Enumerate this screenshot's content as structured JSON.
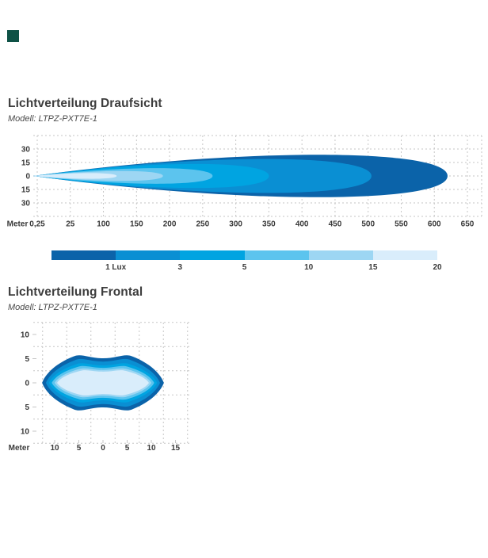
{
  "page": {
    "background": "#ffffff",
    "favicon_color": "#0e5246"
  },
  "sections": {
    "top_view": {
      "title": "Lichtverteilung Draufsicht",
      "model": "Modell: LTPZ-PXT7E-1"
    },
    "front_view": {
      "title": "Lichtverteilung Frontal",
      "model": "Modell: LTPZ-PXT7E-1"
    }
  },
  "legend": {
    "labels": [
      "1 Lux",
      "3",
      "5",
      "10",
      "15",
      "20"
    ],
    "colors": [
      "#0b63a9",
      "#0a8fd3",
      "#00a4e1",
      "#5cc4ee",
      "#9dd6f3",
      "#d9edfb"
    ]
  },
  "chart_data": [
    {
      "type": "area",
      "id": "draufsicht",
      "title": "Lichtverteilung Draufsicht",
      "subtitle": "Modell: LTPZ-PXT7E-1",
      "xlabel": "Meter",
      "x_tick_labels": [
        "0,25",
        "25",
        "100",
        "150",
        "200",
        "250",
        "300",
        "350",
        "400",
        "450",
        "500",
        "550",
        "600",
        "650"
      ],
      "y_tick_labels": [
        "30",
        "15",
        "0",
        "15",
        "30"
      ],
      "grid": true,
      "iso_lux_regions": [
        {
          "lux": 1,
          "label": "1 Lux",
          "reach_m": 620,
          "half_width_m": 30,
          "color": "#0b63a9"
        },
        {
          "lux": 3,
          "label": "3",
          "reach_m": 505,
          "half_width_m": 24,
          "color": "#0a8fd3"
        },
        {
          "lux": 5,
          "label": "5",
          "reach_m": 350,
          "half_width_m": 17,
          "color": "#00a4e1"
        },
        {
          "lux": 10,
          "label": "10",
          "reach_m": 265,
          "half_width_m": 11,
          "color": "#5cc4ee"
        },
        {
          "lux": 15,
          "label": "15",
          "reach_m": 190,
          "half_width_m": 7,
          "color": "#9dd6f3"
        },
        {
          "lux": 20,
          "label": "20",
          "reach_m": 120,
          "half_width_m": 4,
          "color": "#d9edfb"
        }
      ]
    },
    {
      "type": "area",
      "id": "frontal",
      "title": "Lichtverteilung Frontal",
      "subtitle": "Modell: LTPZ-PXT7E-1",
      "xlabel": "Meter",
      "x_tick_labels": [
        "10",
        "5",
        "0",
        "5",
        "10",
        "15"
      ],
      "x_tick_values_m": [
        -10,
        -5,
        0,
        5,
        10,
        15
      ],
      "y_tick_labels": [
        "10",
        "5",
        "0",
        "5",
        "10"
      ],
      "y_tick_values_m": [
        10,
        5,
        0,
        -5,
        -10
      ],
      "grid": true,
      "iso_lux_regions": [
        {
          "lux": 1,
          "half_width_m": 12.6,
          "peak_half_height_m": 5.9,
          "color": "#0b63a9"
        },
        {
          "lux": 3,
          "half_width_m": 11.8,
          "peak_half_height_m": 5.1,
          "color": "#0a8fd3"
        },
        {
          "lux": 5,
          "half_width_m": 11.2,
          "peak_half_height_m": 4.2,
          "color": "#00a4e1"
        },
        {
          "lux": 10,
          "half_width_m": 10.6,
          "peak_half_height_m": 3.6,
          "color": "#5cc4ee"
        },
        {
          "lux": 15,
          "half_width_m": 10.0,
          "peak_half_height_m": 3.1,
          "color": "#9dd6f3"
        },
        {
          "lux": 20,
          "half_width_m": 9.5,
          "peak_half_height_m": 2.7,
          "color": "#d9edfb"
        }
      ]
    }
  ]
}
